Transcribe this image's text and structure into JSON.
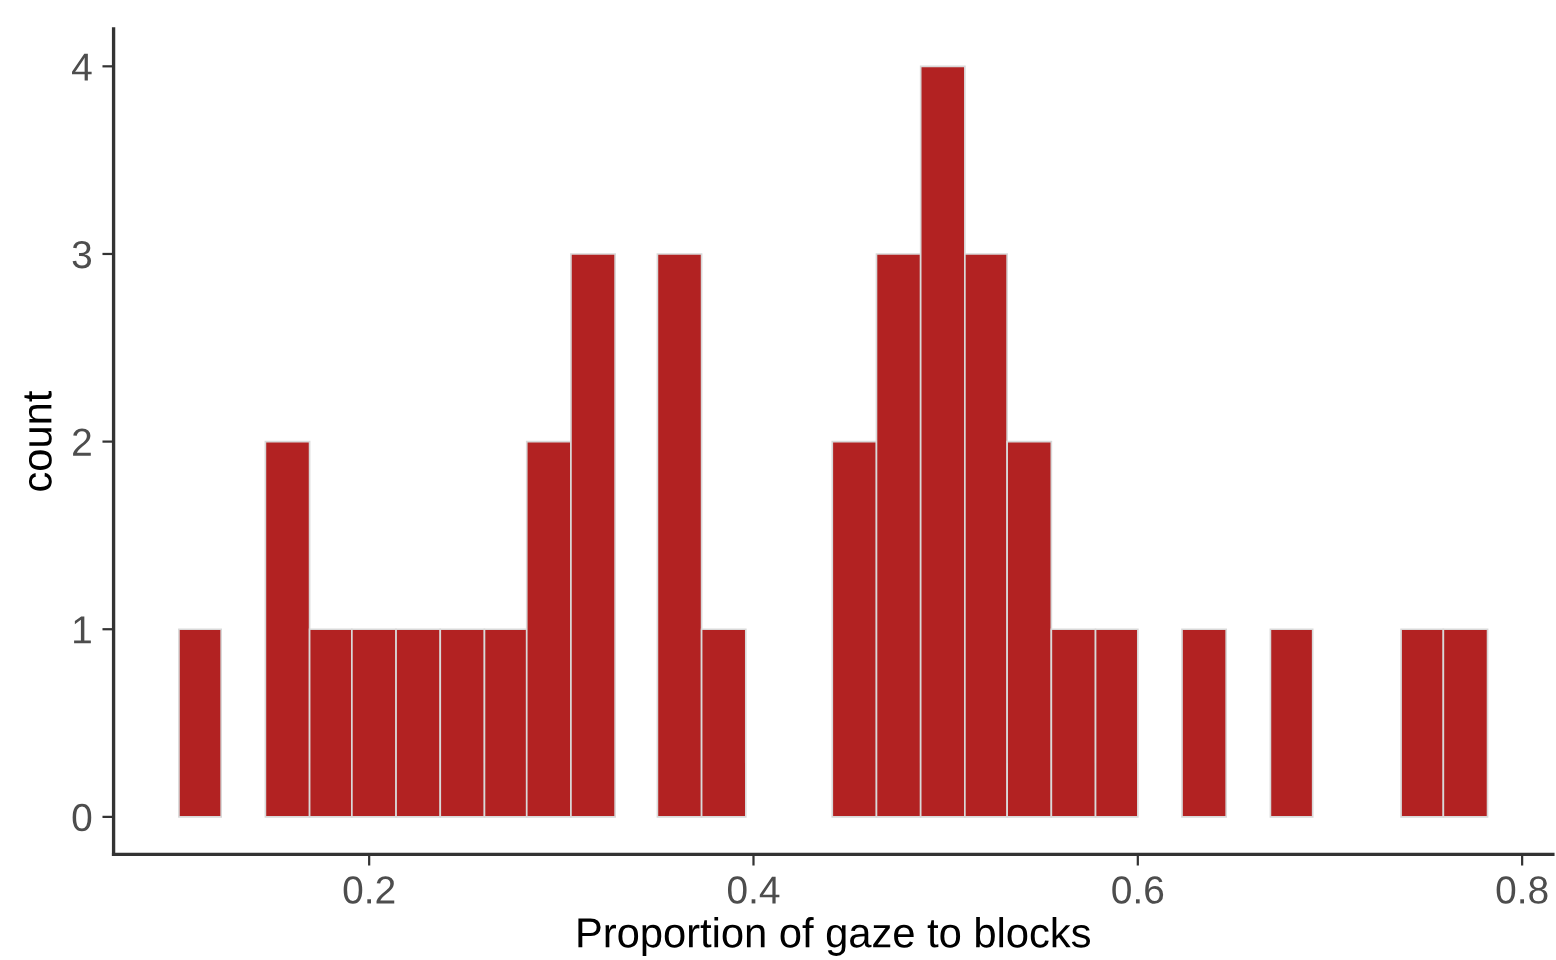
{
  "chart_data": {
    "type": "histogram",
    "xlabel": "Proportion of gaze to blocks",
    "ylabel": "count",
    "bins": [
      0.101,
      0.123,
      0.146,
      0.169,
      0.191,
      0.214,
      0.237,
      0.26,
      0.282,
      0.305,
      0.328,
      0.35,
      0.373,
      0.396,
      0.441,
      0.464,
      0.487,
      0.51,
      0.532,
      0.555,
      0.578,
      0.6,
      0.623,
      0.646,
      0.669,
      0.691,
      0.737,
      0.759,
      0.782
    ],
    "values": [
      1,
      0,
      2,
      1,
      1,
      1,
      1,
      1,
      2,
      3,
      0,
      3,
      1,
      0,
      2,
      3,
      4,
      3,
      2,
      1,
      1,
      0,
      1,
      0,
      1,
      0,
      1,
      1
    ],
    "color": "#b22222",
    "xlim": [
      0.067,
      0.816
    ],
    "xticks": [
      0.2,
      0.4,
      0.6,
      0.8
    ],
    "ylim": [
      -0.2,
      4.2
    ],
    "yticks": [
      0,
      1,
      2,
      3,
      4
    ],
    "grid": false
  }
}
